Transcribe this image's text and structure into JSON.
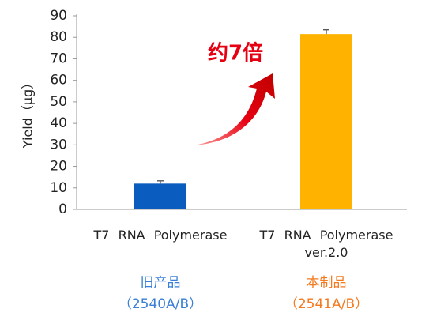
{
  "chart_data": {
    "type": "bar",
    "y_label": "Yield（μg）",
    "categories": [
      "T7 RNA Polymerase",
      "T7 RNA Polymerase ver.2.0"
    ],
    "values": [
      12,
      81.5
    ],
    "errors": [
      1.3,
      2
    ],
    "colors": [
      "#0a5cbf",
      "#ffb300"
    ],
    "ylim": [
      0,
      90
    ],
    "yticks": [
      0,
      10,
      20,
      30,
      40,
      50,
      60,
      70,
      80,
      90
    ],
    "groups": [
      {
        "name": "旧产品",
        "code": "（2540A/B）",
        "color": "#3a7fd5"
      },
      {
        "name": "本制品",
        "code": "（2541A/B）",
        "color": "#f47a20"
      }
    ],
    "annotation": "约7倍"
  }
}
